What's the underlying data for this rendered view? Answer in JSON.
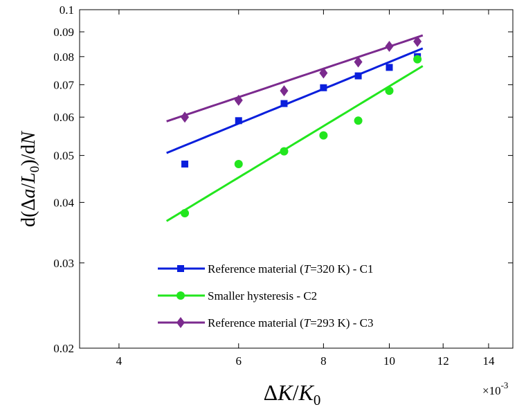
{
  "chart_data": {
    "type": "scatter",
    "xscale": "log",
    "yscale": "log",
    "xlim": [
      0.0035,
      0.0152
    ],
    "ylim": [
      0.02,
      0.1
    ],
    "x_ticks": [
      0.004,
      0.006,
      0.008,
      0.01,
      0.012,
      0.014
    ],
    "x_tick_labels": [
      "4",
      "6",
      "8",
      "10",
      "12",
      "14"
    ],
    "x_exponent_label": "×10-3",
    "y_ticks": [
      0.02,
      0.03,
      0.04,
      0.05,
      0.06,
      0.07,
      0.08,
      0.09,
      0.1
    ],
    "y_tick_labels": [
      "0.02",
      "0.03",
      "0.04",
      "0.05",
      "0.06",
      "0.07",
      "0.08",
      "0.09",
      "0.1"
    ],
    "xlabel": "ΔK/K0",
    "ylabel": "d(Δa/L0)/dN",
    "legend_position": "bottom-center",
    "grid": false,
    "series": [
      {
        "name": "Reference material (T=320 K) - C1",
        "color": "#0a1fdc",
        "marker": "square",
        "points": [
          [
            0.005,
            0.048
          ],
          [
            0.006,
            0.059
          ],
          [
            0.007,
            0.064
          ],
          [
            0.008,
            0.069
          ],
          [
            0.009,
            0.073
          ],
          [
            0.01,
            0.076
          ],
          [
            0.011,
            0.08
          ]
        ],
        "fit": [
          [
            0.0047,
            0.0506
          ],
          [
            0.0112,
            0.0832
          ]
        ]
      },
      {
        "name": "Smaller hysteresis - C2",
        "color": "#22e61e",
        "marker": "circle",
        "points": [
          [
            0.005,
            0.038
          ],
          [
            0.006,
            0.048
          ],
          [
            0.007,
            0.051
          ],
          [
            0.008,
            0.055
          ],
          [
            0.009,
            0.059
          ],
          [
            0.01,
            0.068
          ],
          [
            0.011,
            0.079
          ]
        ],
        "fit": [
          [
            0.0047,
            0.0366
          ],
          [
            0.0112,
            0.0765
          ]
        ]
      },
      {
        "name": "Reference material (T=293 K) - C3",
        "color": "#7b2a8e",
        "marker": "diamond",
        "points": [
          [
            0.005,
            0.06
          ],
          [
            0.006,
            0.065
          ],
          [
            0.007,
            0.068
          ],
          [
            0.008,
            0.074
          ],
          [
            0.009,
            0.078
          ],
          [
            0.01,
            0.084
          ],
          [
            0.011,
            0.086
          ]
        ],
        "fit": [
          [
            0.0047,
            0.0588
          ],
          [
            0.0112,
            0.0885
          ]
        ]
      }
    ]
  }
}
